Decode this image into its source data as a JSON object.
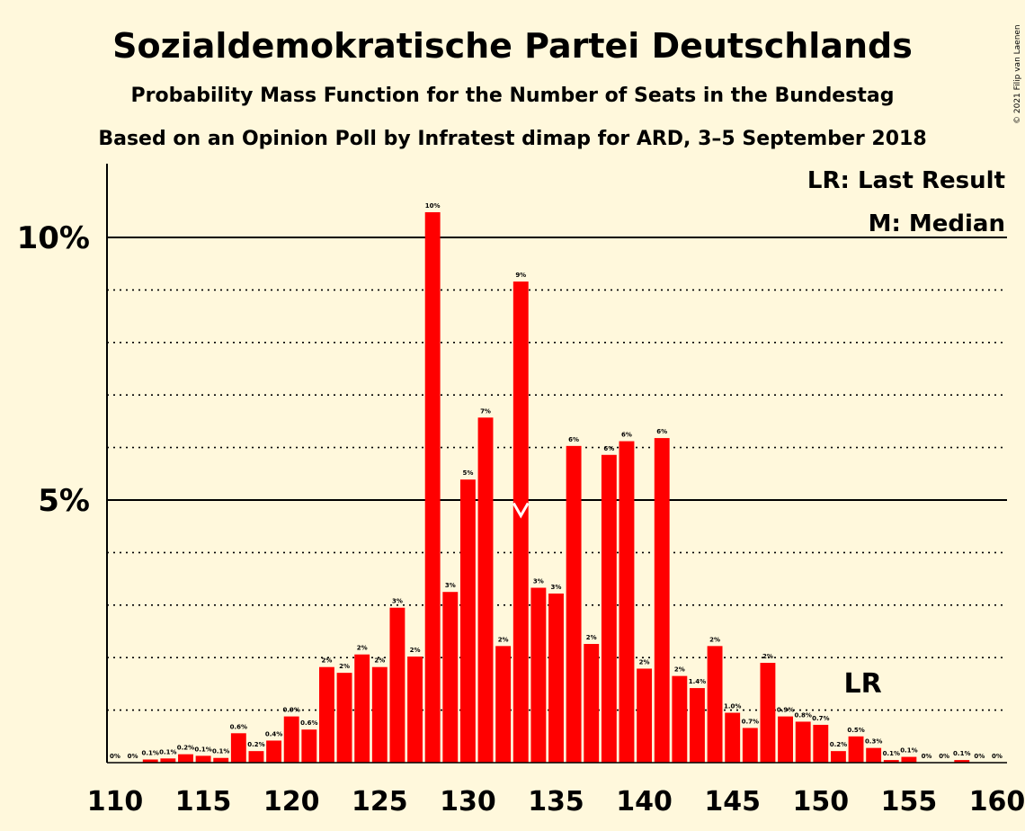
{
  "chart_data": {
    "type": "bar",
    "title": "Sozialdemokratische Partei Deutschlands",
    "subtitle1": "Probability Mass Function for the Number of Seats in the Bundestag",
    "subtitle2": "Based on an Opinion Poll by Infratest dimap for ARD, 3–5 September 2018",
    "copyright": "© 2021 Filip van Laenen",
    "legend_lr": "LR: Last Result",
    "legend_m": "M: Median",
    "lr_label": "LR",
    "median_marker": "M",
    "median_seat": 133,
    "last_result_seat": 153,
    "bar_color": "#ff0000",
    "x": [
      110,
      111,
      112,
      113,
      114,
      115,
      116,
      117,
      118,
      119,
      120,
      121,
      122,
      123,
      124,
      125,
      126,
      127,
      128,
      129,
      130,
      131,
      132,
      133,
      134,
      135,
      136,
      137,
      138,
      139,
      140,
      141,
      142,
      143,
      144,
      145,
      146,
      147,
      148,
      149,
      150,
      151,
      152,
      153,
      154,
      155,
      156,
      157,
      158,
      159,
      160
    ],
    "values": [
      0,
      0,
      0.06,
      0.08,
      0.16,
      0.13,
      0.09,
      0.56,
      0.22,
      0.42,
      0.88,
      0.63,
      1.82,
      1.71,
      2.06,
      1.82,
      2.95,
      2.02,
      10.48,
      3.25,
      5.39,
      6.57,
      2.22,
      9.16,
      3.33,
      3.22,
      6.03,
      2.26,
      5.86,
      6.12,
      1.79,
      6.18,
      1.65,
      1.42,
      2.22,
      0.95,
      0.66,
      1.9,
      0.88,
      0.78,
      0.72,
      0.22,
      0.5,
      0.28,
      0.05,
      0.11,
      0,
      0,
      0.05,
      0,
      0
    ],
    "labels": [
      "0%",
      "0%",
      "0.1%",
      "0.1%",
      "0.2%",
      "0.1%",
      "0.1%",
      "0.6%",
      "0.2%",
      "0.4%",
      "0.9%",
      "0.6%",
      "2%",
      "2%",
      "2%",
      "2%",
      "3%",
      "2%",
      "10%",
      "3%",
      "5%",
      "7%",
      "2%",
      "9%",
      "3%",
      "3%",
      "6%",
      "2%",
      "6%",
      "6%",
      "2%",
      "6%",
      "2%",
      "1.4%",
      "2%",
      "1.0%",
      "0.7%",
      "2%",
      "0.9%",
      "0.8%",
      "0.7%",
      "0.2%",
      "0.5%",
      "0.3%",
      "0.1%",
      "0.1%",
      "0%",
      "0%",
      "0.1%",
      "0%",
      "0%"
    ],
    "xticks": [
      110,
      115,
      120,
      125,
      130,
      135,
      140,
      145,
      150,
      155,
      160
    ],
    "yticks": [
      {
        "value": 5,
        "label": "5%"
      },
      {
        "value": 10,
        "label": "10%"
      }
    ],
    "ylim": [
      0,
      11.3
    ],
    "grid": "dotted at every 1%, solid at 5% and 10%"
  }
}
